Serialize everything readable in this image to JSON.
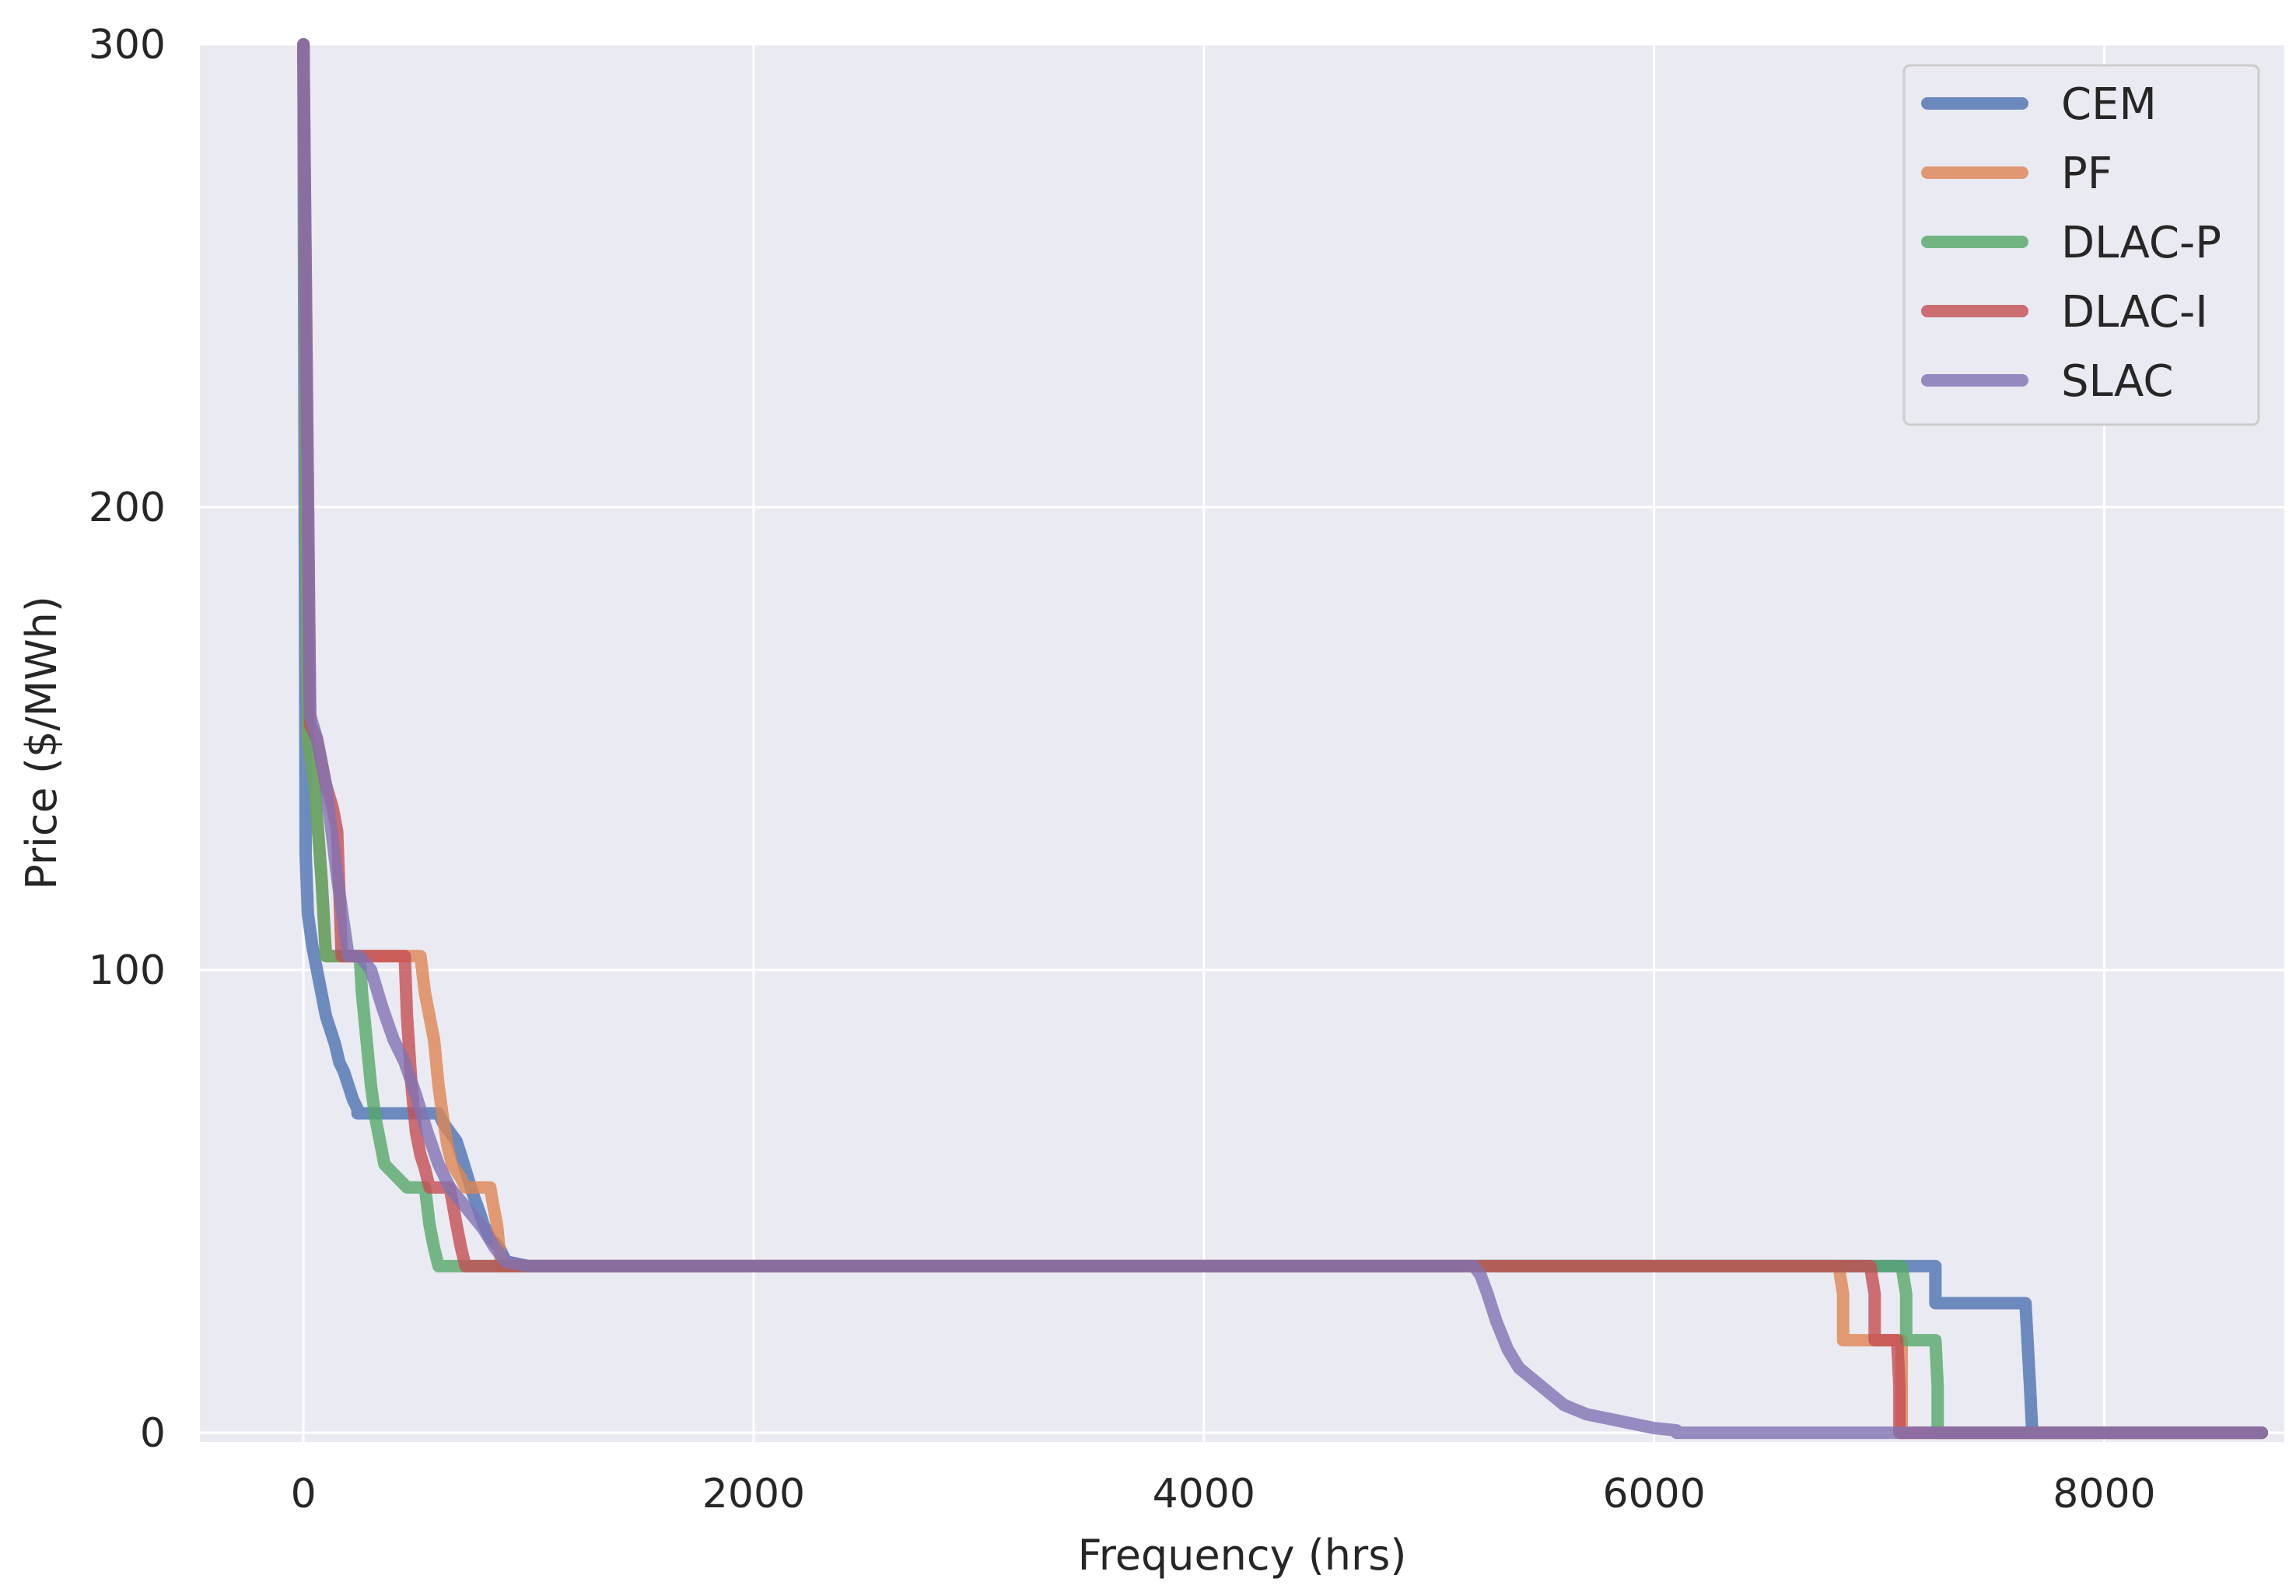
{
  "chart_data": {
    "type": "line",
    "title": "",
    "xlabel": "Frequency (hrs)",
    "ylabel": "Price ($/MWh)",
    "xlim": [
      -460,
      8800
    ],
    "ylim": [
      -2,
      300
    ],
    "xticks": [
      0,
      2000,
      4000,
      6000,
      8000
    ],
    "yticks": [
      0,
      100,
      200,
      300
    ],
    "grid": true,
    "background": "#eaeaf2",
    "legend_position": "top-right",
    "series": [
      {
        "name": "CEM",
        "color": "#4c72b0",
        "x": [
          0,
          10,
          20,
          40,
          60,
          80,
          100,
          120,
          140,
          160,
          180,
          200,
          220,
          240,
          240,
          600,
          620,
          650,
          680,
          700,
          750,
          780,
          800,
          830,
          870,
          900,
          1000,
          7200,
          7250,
          7250,
          7650,
          7670,
          7680,
          8700
        ],
        "y": [
          300,
          125,
          112,
          105,
          100,
          95,
          90,
          87,
          84,
          80,
          78,
          75,
          72,
          70,
          69,
          69,
          67,
          65,
          63,
          60,
          52,
          48,
          45,
          42,
          40,
          37,
          36,
          36,
          36,
          28,
          28,
          10,
          0,
          0
        ]
      },
      {
        "name": "PF",
        "color": "#dd8452",
        "x": [
          0,
          20,
          50,
          80,
          100,
          100,
          100,
          520,
          540,
          560,
          580,
          600,
          620,
          640,
          660,
          700,
          720,
          760,
          790,
          800,
          830,
          840,
          860,
          870,
          880,
          1000,
          6820,
          6840,
          6840,
          7100,
          7100,
          8700
        ],
        "y": [
          300,
          150,
          140,
          120,
          103,
          103,
          103,
          103,
          95,
          90,
          85,
          75,
          68,
          62,
          58,
          55,
          53,
          53,
          53,
          53,
          53,
          50,
          45,
          40,
          36,
          36,
          36,
          30,
          20,
          20,
          0,
          0
        ]
      },
      {
        "name": "DLAC-P",
        "color": "#55a868",
        "x": [
          0,
          20,
          50,
          80,
          100,
          100,
          250,
          260,
          280,
          300,
          320,
          340,
          360,
          420,
          460,
          500,
          540,
          560,
          580,
          600,
          620,
          700,
          1000,
          7100,
          7120,
          7120,
          7250,
          7260,
          7260,
          8700
        ],
        "y": [
          300,
          150,
          140,
          120,
          103,
          103,
          103,
          95,
          85,
          75,
          68,
          63,
          58,
          55,
          53,
          53,
          53,
          45,
          40,
          36,
          36,
          36,
          36,
          36,
          30,
          20,
          20,
          10,
          0,
          0
        ]
      },
      {
        "name": "DLAC-I",
        "color": "#c44e52",
        "x": [
          0,
          30,
          60,
          100,
          130,
          150,
          170,
          170,
          450,
          460,
          480,
          500,
          520,
          540,
          560,
          620,
          650,
          680,
          700,
          720,
          740,
          1000,
          6960,
          6980,
          6980,
          7080,
          7090,
          7090,
          8700
        ],
        "y": [
          300,
          153,
          150,
          140,
          135,
          130,
          103,
          103,
          103,
          90,
          75,
          65,
          60,
          57,
          53,
          53,
          53,
          45,
          40,
          36,
          36,
          36,
          36,
          30,
          20,
          20,
          10,
          0,
          0
        ]
      },
      {
        "name": "SLAC",
        "color": "#8172b3",
        "x": [
          0,
          30,
          60,
          100,
          150,
          200,
          250,
          300,
          350,
          400,
          450,
          500,
          550,
          600,
          650,
          700,
          750,
          800,
          850,
          900,
          1000,
          5200,
          5230,
          5260,
          5300,
          5350,
          5400,
          5450,
          5500,
          5550,
          5600,
          5700,
          5800,
          5900,
          6000,
          6100,
          6100,
          8700
        ],
        "y": [
          300,
          155,
          150,
          140,
          120,
          103,
          103,
          100,
          92,
          85,
          80,
          73,
          65,
          58,
          53,
          50,
          47,
          44,
          40,
          37,
          36,
          36,
          34,
          30,
          24,
          18,
          14,
          12,
          10,
          8,
          6,
          4,
          3,
          2,
          1,
          0.5,
          0,
          0
        ]
      }
    ]
  }
}
